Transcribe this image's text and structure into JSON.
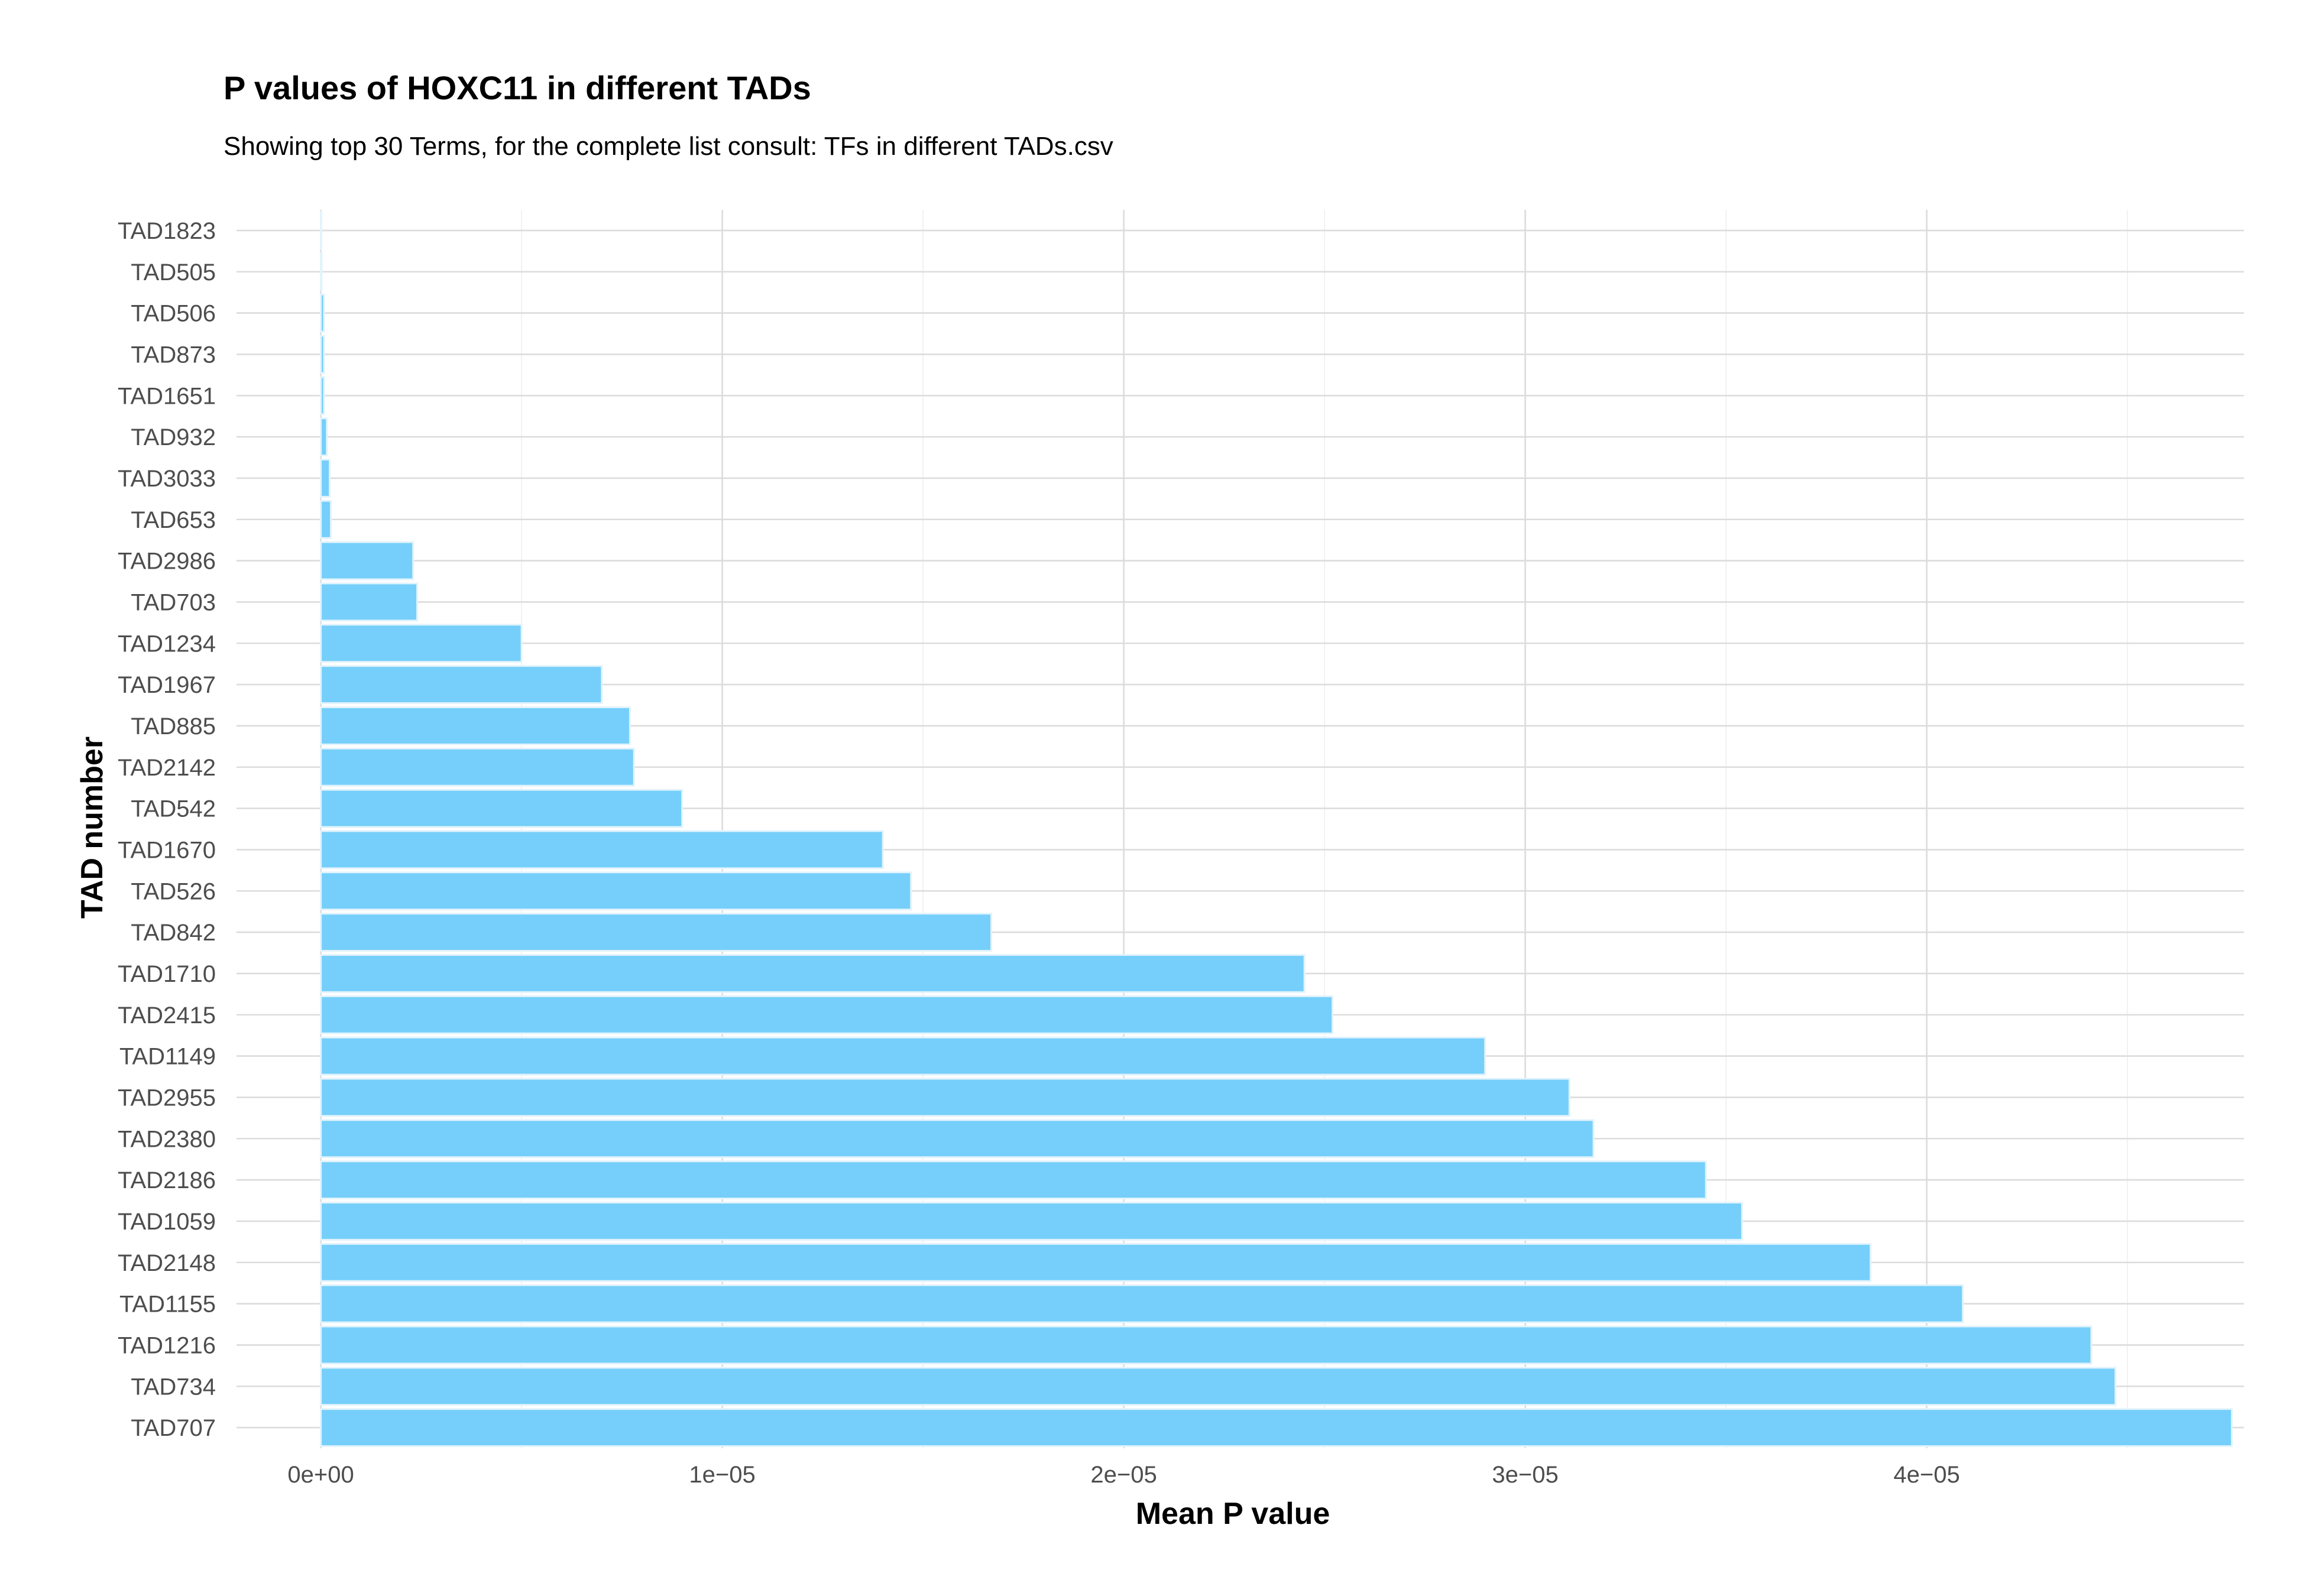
{
  "chart_data": {
    "type": "bar",
    "orientation": "horizontal",
    "title": "P values of HOXC11 in different TADs",
    "subtitle": "Showing top 30 Terms, for the complete list consult: TFs in different TADs.csv",
    "xlabel": "Mean P value",
    "ylabel": "TAD number",
    "xlim": [
      -2.1e-06,
      4.79e-05
    ],
    "x_ticks": [
      0,
      1e-05,
      2e-05,
      3e-05,
      4e-05
    ],
    "x_tick_labels": [
      "0e+00",
      "1e−05",
      "2e−05",
      "3e−05",
      "4e−05"
    ],
    "grid": true,
    "bar_color": "#75cffa",
    "categories": [
      "TAD1823",
      "TAD505",
      "TAD506",
      "TAD873",
      "TAD1651",
      "TAD932",
      "TAD3033",
      "TAD653",
      "TAD2986",
      "TAD703",
      "TAD1234",
      "TAD1967",
      "TAD885",
      "TAD2142",
      "TAD542",
      "TAD1670",
      "TAD526",
      "TAD842",
      "TAD1710",
      "TAD2415",
      "TAD1149",
      "TAD2955",
      "TAD2380",
      "TAD2186",
      "TAD1059",
      "TAD2148",
      "TAD1155",
      "TAD1216",
      "TAD734",
      "TAD707"
    ],
    "values": [
      1e-08,
      2e-08,
      8e-08,
      8e-08,
      8e-08,
      1.5e-07,
      2.2e-07,
      2.5e-07,
      2.3e-06,
      2.4e-06,
      5e-06,
      7e-06,
      7.7e-06,
      7.8e-06,
      9e-06,
      1.4e-05,
      1.47e-05,
      1.67e-05,
      2.45e-05,
      2.52e-05,
      2.9e-05,
      3.11e-05,
      3.17e-05,
      3.45e-05,
      3.54e-05,
      3.86e-05,
      4.09e-05,
      4.41e-05,
      4.47e-05,
      4.76e-05
    ]
  }
}
